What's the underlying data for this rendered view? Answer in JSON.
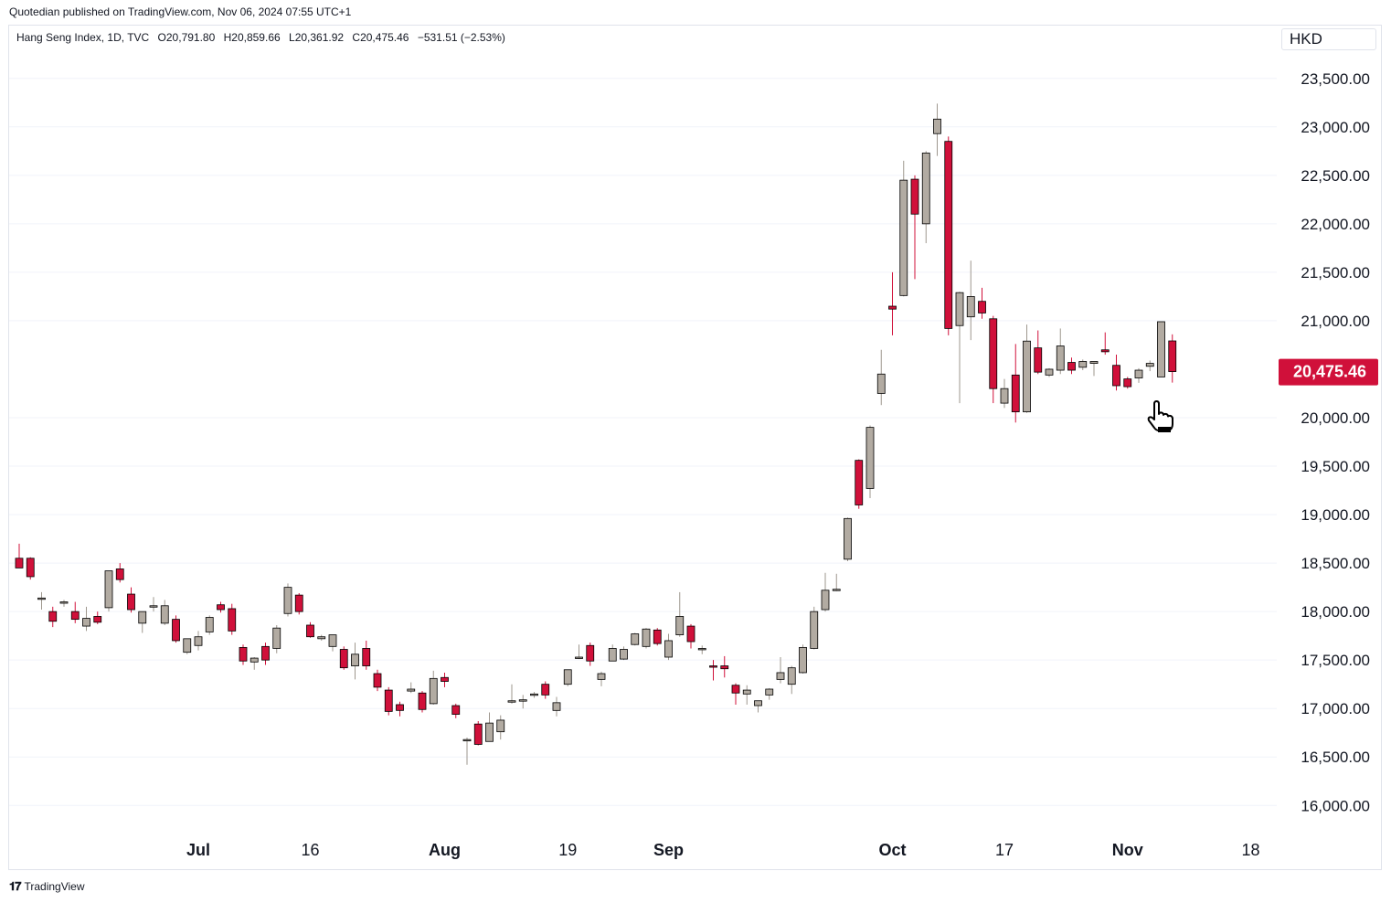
{
  "header": {
    "published": "Quotedian published on TradingView.com, Nov 06, 2024 07:55 UTC+1"
  },
  "legend": {
    "symbol": "Hang Seng Index, 1D, TVC",
    "open": "O20,791.80",
    "high": "H20,859.66",
    "low": "L20,361.92",
    "close": "C20,475.46",
    "change": "−531.51 (−2.53%)"
  },
  "currency": "HKD",
  "footer": {
    "brand": "TradingView"
  },
  "colors": {
    "up": "#b2aba2",
    "down": "#d0103a",
    "wick_up": "#9e978e",
    "wick_down": "#d0103a",
    "grid": "#f0f3fa",
    "last_label_bg": "#d0103a"
  },
  "chart_data": {
    "type": "candlestick",
    "title": "Hang Seng Index, 1D, TVC",
    "ylim": [
      15650,
      23800
    ],
    "y_ticks": [
      "23,500.00",
      "23,000.00",
      "22,500.00",
      "22,000.00",
      "21,500.00",
      "21,000.00",
      "20,000.00",
      "19,500.00",
      "19,000.00",
      "18,500.00",
      "18,000.00",
      "17,500.00",
      "17,000.00",
      "16,500.00",
      "16,000.00"
    ],
    "y_tick_values": [
      23500,
      23000,
      22500,
      22000,
      21500,
      21000,
      20000,
      19500,
      19000,
      18500,
      18000,
      17500,
      17000,
      16500,
      16000
    ],
    "x_ticks": [
      {
        "label": "Jul",
        "index": 16
      },
      {
        "label": "16",
        "index": 26
      },
      {
        "label": "Aug",
        "index": 38
      },
      {
        "label": "19",
        "index": 49
      },
      {
        "label": "Sep",
        "index": 58
      },
      {
        "label": "Oct",
        "index": 78
      },
      {
        "label": "17",
        "index": 88
      },
      {
        "label": "Nov",
        "index": 99
      },
      {
        "label": "18",
        "index": 110
      }
    ],
    "x_tick_bold": [
      "Jul",
      "Aug",
      "Sep",
      "Oct",
      "Nov"
    ],
    "last_price": {
      "value": 20475.46,
      "label": "20,475.46"
    },
    "candles": [
      {
        "o": 18550,
        "h": 18700,
        "l": 18450,
        "c": 18450
      },
      {
        "o": 18550,
        "h": 18560,
        "l": 18330,
        "c": 18360
      },
      {
        "o": 18140,
        "h": 18200,
        "l": 18020,
        "c": 18140
      },
      {
        "o": 18000,
        "h": 18050,
        "l": 17840,
        "c": 17900
      },
      {
        "o": 18100,
        "h": 18120,
        "l": 18050,
        "c": 18100
      },
      {
        "o": 18000,
        "h": 18100,
        "l": 17880,
        "c": 17920
      },
      {
        "o": 17850,
        "h": 18050,
        "l": 17800,
        "c": 17930
      },
      {
        "o": 17950,
        "h": 18000,
        "l": 17870,
        "c": 17890
      },
      {
        "o": 18040,
        "h": 18420,
        "l": 18000,
        "c": 18420
      },
      {
        "o": 18440,
        "h": 18500,
        "l": 18300,
        "c": 18330
      },
      {
        "o": 18180,
        "h": 18250,
        "l": 17990,
        "c": 18020
      },
      {
        "o": 17880,
        "h": 18000,
        "l": 17780,
        "c": 18000
      },
      {
        "o": 18050,
        "h": 18150,
        "l": 18000,
        "c": 18060
      },
      {
        "o": 17880,
        "h": 18120,
        "l": 17860,
        "c": 18060
      },
      {
        "o": 17920,
        "h": 17960,
        "l": 17680,
        "c": 17700
      },
      {
        "o": 17580,
        "h": 17720,
        "l": 17560,
        "c": 17720
      },
      {
        "o": 17650,
        "h": 17800,
        "l": 17600,
        "c": 17740
      },
      {
        "o": 17790,
        "h": 17960,
        "l": 17760,
        "c": 17940
      },
      {
        "o": 18070,
        "h": 18100,
        "l": 17990,
        "c": 18020
      },
      {
        "o": 18030,
        "h": 18080,
        "l": 17760,
        "c": 17800
      },
      {
        "o": 17630,
        "h": 17660,
        "l": 17450,
        "c": 17490
      },
      {
        "o": 17480,
        "h": 17530,
        "l": 17400,
        "c": 17520
      },
      {
        "o": 17640,
        "h": 17680,
        "l": 17450,
        "c": 17500
      },
      {
        "o": 17620,
        "h": 17860,
        "l": 17570,
        "c": 17830
      },
      {
        "o": 17980,
        "h": 18290,
        "l": 17950,
        "c": 18250
      },
      {
        "o": 18170,
        "h": 18190,
        "l": 17970,
        "c": 18000
      },
      {
        "o": 17860,
        "h": 17890,
        "l": 17730,
        "c": 17740
      },
      {
        "o": 17720,
        "h": 17760,
        "l": 17700,
        "c": 17740
      },
      {
        "o": 17640,
        "h": 17760,
        "l": 17590,
        "c": 17760
      },
      {
        "o": 17610,
        "h": 17640,
        "l": 17400,
        "c": 17420
      },
      {
        "o": 17440,
        "h": 17680,
        "l": 17300,
        "c": 17560
      },
      {
        "o": 17620,
        "h": 17700,
        "l": 17400,
        "c": 17440
      },
      {
        "o": 17360,
        "h": 17400,
        "l": 17180,
        "c": 17220
      },
      {
        "o": 17190,
        "h": 17220,
        "l": 16930,
        "c": 16970
      },
      {
        "o": 17040,
        "h": 17070,
        "l": 16920,
        "c": 16980
      },
      {
        "o": 17180,
        "h": 17270,
        "l": 17160,
        "c": 17200
      },
      {
        "o": 17160,
        "h": 17180,
        "l": 16960,
        "c": 16990
      },
      {
        "o": 17050,
        "h": 17390,
        "l": 17040,
        "c": 17310
      },
      {
        "o": 17320,
        "h": 17370,
        "l": 17220,
        "c": 17280
      },
      {
        "o": 17030,
        "h": 17050,
        "l": 16900,
        "c": 16940
      },
      {
        "o": 16670,
        "h": 16700,
        "l": 16420,
        "c": 16680
      },
      {
        "o": 16840,
        "h": 16870,
        "l": 16620,
        "c": 16630
      },
      {
        "o": 16660,
        "h": 16960,
        "l": 16660,
        "c": 16850
      },
      {
        "o": 16760,
        "h": 16930,
        "l": 16680,
        "c": 16880
      },
      {
        "o": 17070,
        "h": 17250,
        "l": 17050,
        "c": 17080
      },
      {
        "o": 17080,
        "h": 17140,
        "l": 17000,
        "c": 17090
      },
      {
        "o": 17140,
        "h": 17170,
        "l": 17110,
        "c": 17150
      },
      {
        "o": 17250,
        "h": 17280,
        "l": 17100,
        "c": 17140
      },
      {
        "o": 16980,
        "h": 17120,
        "l": 16920,
        "c": 17060
      },
      {
        "o": 17250,
        "h": 17400,
        "l": 17230,
        "c": 17400
      },
      {
        "o": 17530,
        "h": 17660,
        "l": 17510,
        "c": 17530
      },
      {
        "o": 17650,
        "h": 17680,
        "l": 17440,
        "c": 17490
      },
      {
        "o": 17300,
        "h": 17380,
        "l": 17230,
        "c": 17360
      },
      {
        "o": 17490,
        "h": 17660,
        "l": 17490,
        "c": 17620
      },
      {
        "o": 17510,
        "h": 17640,
        "l": 17500,
        "c": 17610
      },
      {
        "o": 17660,
        "h": 17780,
        "l": 17650,
        "c": 17770
      },
      {
        "o": 17640,
        "h": 17830,
        "l": 17620,
        "c": 17820
      },
      {
        "o": 17810,
        "h": 17830,
        "l": 17650,
        "c": 17670
      },
      {
        "o": 17530,
        "h": 17770,
        "l": 17500,
        "c": 17700
      },
      {
        "o": 17760,
        "h": 18200,
        "l": 17740,
        "c": 17950
      },
      {
        "o": 17850,
        "h": 17870,
        "l": 17620,
        "c": 17690
      },
      {
        "o": 17620,
        "h": 17650,
        "l": 17560,
        "c": 17620
      },
      {
        "o": 17440,
        "h": 17500,
        "l": 17290,
        "c": 17430
      },
      {
        "o": 17440,
        "h": 17540,
        "l": 17320,
        "c": 17410
      },
      {
        "o": 17240,
        "h": 17260,
        "l": 17040,
        "c": 17160
      },
      {
        "o": 17150,
        "h": 17240,
        "l": 17040,
        "c": 17190
      },
      {
        "o": 17030,
        "h": 17080,
        "l": 16960,
        "c": 17080
      },
      {
        "o": 17140,
        "h": 17210,
        "l": 17090,
        "c": 17200
      },
      {
        "o": 17300,
        "h": 17530,
        "l": 17260,
        "c": 17370
      },
      {
        "o": 17250,
        "h": 17440,
        "l": 17150,
        "c": 17420
      },
      {
        "o": 17370,
        "h": 17660,
        "l": 17360,
        "c": 17630
      },
      {
        "o": 17620,
        "h": 18050,
        "l": 17610,
        "c": 18000
      },
      {
        "o": 18020,
        "h": 18400,
        "l": 18000,
        "c": 18220
      },
      {
        "o": 18220,
        "h": 18390,
        "l": 18210,
        "c": 18230
      },
      {
        "o": 18540,
        "h": 18970,
        "l": 18520,
        "c": 18960
      },
      {
        "o": 19560,
        "h": 19570,
        "l": 19060,
        "c": 19100
      },
      {
        "o": 19270,
        "h": 19920,
        "l": 19170,
        "c": 19900
      },
      {
        "o": 20250,
        "h": 20700,
        "l": 20130,
        "c": 20450
      },
      {
        "o": 21150,
        "h": 21500,
        "l": 20850,
        "c": 21120
      },
      {
        "o": 21260,
        "h": 22650,
        "l": 21250,
        "c": 22450
      },
      {
        "o": 22460,
        "h": 22500,
        "l": 21430,
        "c": 22100
      },
      {
        "o": 22000,
        "h": 22750,
        "l": 21800,
        "c": 22730
      },
      {
        "o": 22930,
        "h": 23240,
        "l": 22700,
        "c": 23080
      },
      {
        "o": 22850,
        "h": 22900,
        "l": 20850,
        "c": 20920
      },
      {
        "o": 20950,
        "h": 21300,
        "l": 20150,
        "c": 21290
      },
      {
        "o": 21040,
        "h": 21620,
        "l": 20800,
        "c": 21250
      },
      {
        "o": 21200,
        "h": 21340,
        "l": 21020,
        "c": 21080
      },
      {
        "o": 21020,
        "h": 21050,
        "l": 20150,
        "c": 20300
      },
      {
        "o": 20150,
        "h": 20400,
        "l": 20100,
        "c": 20300
      },
      {
        "o": 20440,
        "h": 20760,
        "l": 19950,
        "c": 20060
      },
      {
        "o": 20060,
        "h": 20960,
        "l": 20050,
        "c": 20790
      },
      {
        "o": 20720,
        "h": 20900,
        "l": 20450,
        "c": 20470
      },
      {
        "o": 20440,
        "h": 20510,
        "l": 20420,
        "c": 20500
      },
      {
        "o": 20490,
        "h": 20920,
        "l": 20450,
        "c": 20740
      },
      {
        "o": 20570,
        "h": 20620,
        "l": 20450,
        "c": 20490
      },
      {
        "o": 20520,
        "h": 20600,
        "l": 20490,
        "c": 20580
      },
      {
        "o": 20560,
        "h": 20580,
        "l": 20430,
        "c": 20580
      },
      {
        "o": 20700,
        "h": 20880,
        "l": 20650,
        "c": 20680
      },
      {
        "o": 20540,
        "h": 20650,
        "l": 20280,
        "c": 20330
      },
      {
        "o": 20400,
        "h": 20420,
        "l": 20300,
        "c": 20320
      },
      {
        "o": 20410,
        "h": 20510,
        "l": 20360,
        "c": 20490
      },
      {
        "o": 20530,
        "h": 20590,
        "l": 20480,
        "c": 20560
      },
      {
        "o": 20420,
        "h": 20990,
        "l": 20420,
        "c": 20990
      },
      {
        "o": 20791.8,
        "h": 20859.66,
        "l": 20361.92,
        "c": 20475.46
      }
    ]
  }
}
